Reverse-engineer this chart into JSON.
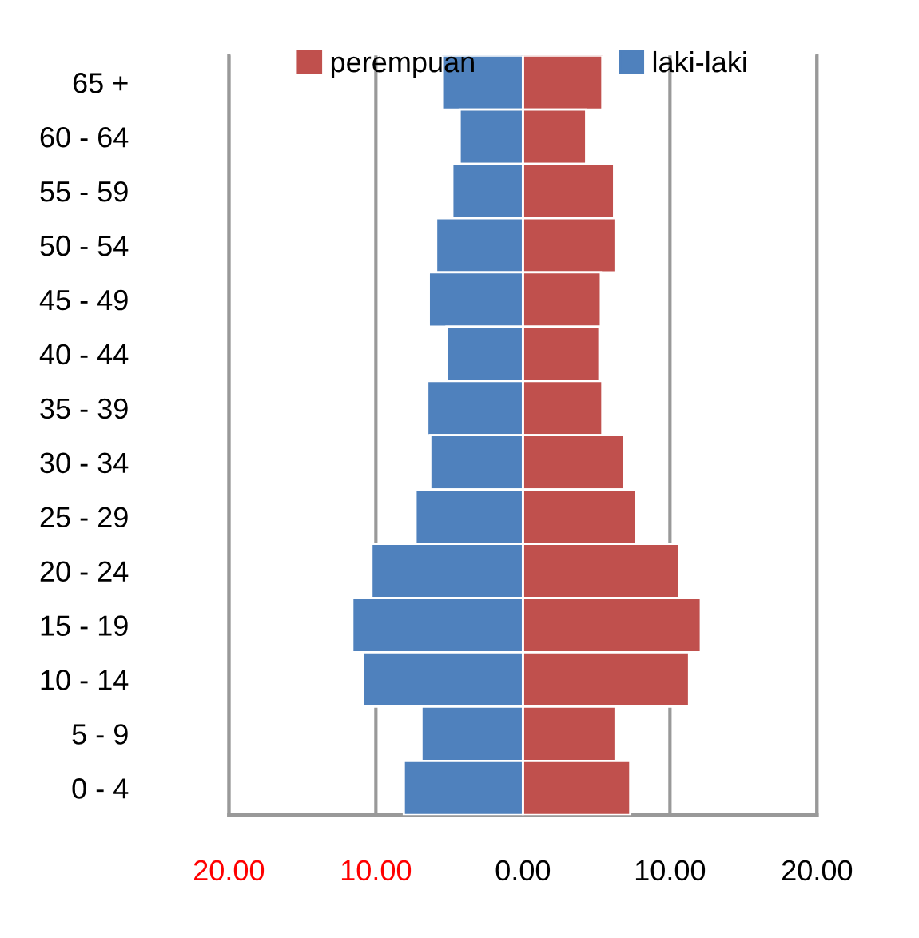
{
  "chart_data": {
    "type": "bar",
    "orientation": "horizontal",
    "stacked": true,
    "categories": [
      "65 +",
      "60 - 64",
      "55 - 59",
      "50 - 54",
      "45 - 49",
      "40 - 44",
      "35 - 39",
      "30 - 34",
      "25 - 29",
      "20 - 24",
      "15 - 19",
      "10 - 14",
      "5 - 9",
      "0 - 4"
    ],
    "series": [
      {
        "name": "perempuan",
        "color": "#c0504d",
        "values": [
          5.4,
          4.3,
          6.2,
          6.3,
          5.3,
          5.2,
          5.4,
          6.9,
          7.7,
          10.6,
          12.1,
          11.3,
          6.3,
          7.3
        ]
      },
      {
        "name": "laki-laki",
        "color": "#4f81bd",
        "values": [
          -5.5,
          -4.3,
          -4.8,
          -5.9,
          -6.4,
          -5.2,
          -6.5,
          -6.3,
          -7.3,
          -10.3,
          -11.6,
          -10.9,
          -6.9,
          -8.1
        ]
      }
    ],
    "xlim": [
      -20,
      20
    ],
    "xticks": [
      {
        "value": -20,
        "label": "20.00"
      },
      {
        "value": -10,
        "label": "10.00"
      },
      {
        "value": 0,
        "label": "0.00"
      },
      {
        "value": 10,
        "label": "10.00"
      },
      {
        "value": 20,
        "label": "20.00"
      }
    ],
    "grid": "x",
    "legend": "top"
  }
}
